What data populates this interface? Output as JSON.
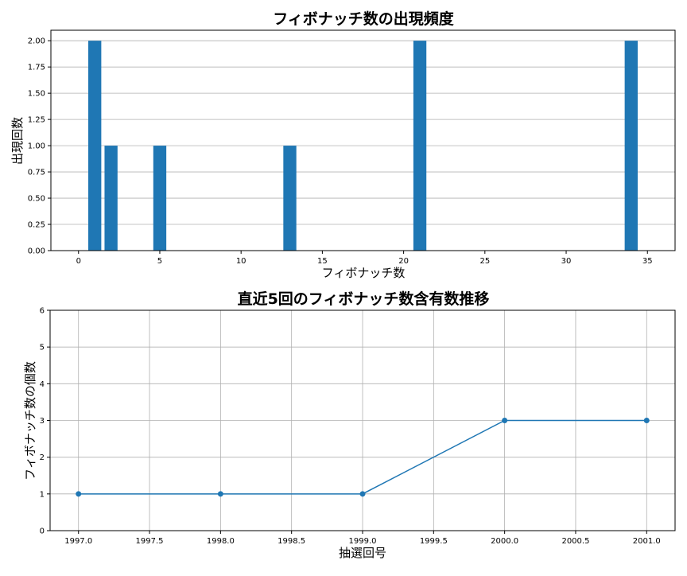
{
  "chart_data": [
    {
      "type": "bar",
      "title": "フィボナッチ数の出現頻度",
      "xlabel": "フィボナッチ数",
      "ylabel": "出現回数",
      "x": [
        1,
        2,
        5,
        13,
        21,
        34
      ],
      "values": [
        2,
        1,
        1,
        1,
        2,
        2
      ],
      "xlim": [
        -1.7,
        36.7
      ],
      "ylim": [
        0,
        2.1
      ],
      "xticks": [
        "0",
        "5",
        "10",
        "15",
        "20",
        "25",
        "30",
        "35"
      ],
      "yticks": [
        "0.00",
        "0.25",
        "0.50",
        "0.75",
        "1.00",
        "1.25",
        "1.50",
        "1.75",
        "2.00"
      ],
      "grid": "y",
      "color": "#1f77b4"
    },
    {
      "type": "line",
      "title": "直近5回のフィボナッチ数含有数推移",
      "xlabel": "抽選回号",
      "ylabel": "フィボナッチ数の個数",
      "x": [
        1997,
        1998,
        1999,
        2000,
        2001
      ],
      "values": [
        1,
        1,
        1,
        3,
        3
      ],
      "xlim": [
        1996.8,
        2001.2
      ],
      "ylim": [
        0,
        6
      ],
      "xticks": [
        "1997.0",
        "1997.5",
        "1998.0",
        "1998.5",
        "1999.0",
        "1999.5",
        "2000.0",
        "2000.5",
        "2001.0"
      ],
      "yticks": [
        "0",
        "1",
        "2",
        "3",
        "4",
        "5",
        "6"
      ],
      "grid": "both",
      "color": "#1f77b4"
    }
  ]
}
